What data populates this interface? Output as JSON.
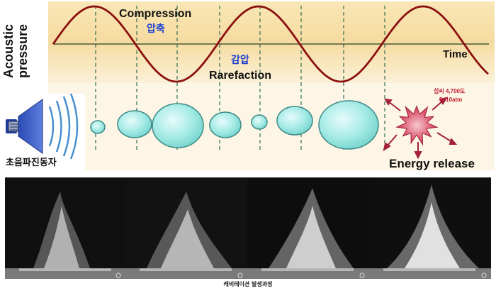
{
  "labels": {
    "compression": "Compression",
    "compression_ko": "압축",
    "rarefaction": "Rarefaction",
    "rarefaction_ko": "감압",
    "axis_y_line1": "Acoustic",
    "axis_y_line2": "pressure",
    "axis_x": "Time",
    "transducer_ko": "초음파진동자",
    "energy": "Energy release",
    "temp_line1": "섭씨 4,700도",
    "temp_line2": "5~10atm"
  },
  "photos": {
    "caption": "캐비테이션 발생과정"
  },
  "colors": {
    "band": "#f6dfa6",
    "bubble_fill": "#9fe8e4",
    "bubble_stroke": "#3d8a86",
    "burst": "#d8506a",
    "wave": "#8b1010",
    "ko_text": "#1a3fd0"
  }
}
